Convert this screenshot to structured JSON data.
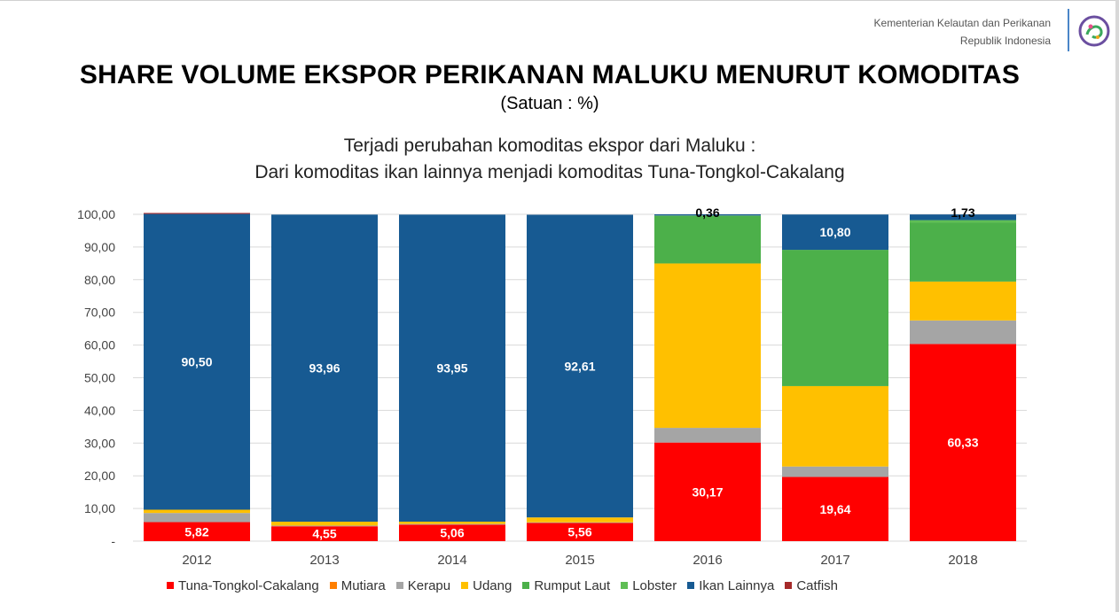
{
  "header": {
    "ministry_line1": "Kementerian Kelautan dan Perikanan",
    "ministry_line2": "Republik Indonesia"
  },
  "title": "SHARE VOLUME EKSPOR PERIKANAN MALUKU MENURUT KOMODITAS",
  "unit": "(Satuan : %)",
  "subtitle_line1": "Terjadi perubahan komoditas ekspor dari Maluku :",
  "subtitle_line2": "Dari komoditas ikan lainnya menjadi komoditas Tuna-Tongkol-Cakalang",
  "chart_data": {
    "type": "bar",
    "stacked": true,
    "categories": [
      "2012",
      "2013",
      "2014",
      "2015",
      "2016",
      "2017",
      "2018"
    ],
    "ylim": [
      0,
      100
    ],
    "yticks": [
      "-",
      "10,00",
      "20,00",
      "30,00",
      "40,00",
      "50,00",
      "60,00",
      "70,00",
      "80,00",
      "90,00",
      "100,00"
    ],
    "grid": true,
    "legend_position": "bottom",
    "series": [
      {
        "name": "Tuna-Tongkol-Cakalang",
        "color": "#ff0000",
        "values": [
          5.82,
          4.55,
          5.06,
          5.56,
          30.17,
          19.64,
          60.33
        ]
      },
      {
        "name": "Mutiara",
        "color": "#ff7f00",
        "values": [
          0,
          0,
          0,
          0,
          0,
          0,
          0
        ]
      },
      {
        "name": "Kerapu",
        "color": "#a5a5a5",
        "values": [
          2.8,
          0.2,
          0.2,
          0.2,
          4.5,
          3.2,
          7.2
        ]
      },
      {
        "name": "Udang",
        "color": "#ffc000",
        "values": [
          1.0,
          1.2,
          0.7,
          1.5,
          50.3,
          24.6,
          11.9
        ]
      },
      {
        "name": "Rumput Laut",
        "color": "#4cb04a",
        "values": [
          0,
          0,
          0,
          0,
          14.6,
          41.7,
          18.0
        ]
      },
      {
        "name": "Lobster",
        "color": "#5fbe55",
        "values": [
          0,
          0,
          0,
          0,
          0.07,
          0,
          0.8
        ]
      },
      {
        "name": "Ikan Lainnya",
        "color": "#175a92",
        "values": [
          90.5,
          93.96,
          93.95,
          92.61,
          0.36,
          10.8,
          1.73
        ]
      },
      {
        "name": "Catfish",
        "color": "#a52a2a",
        "values": [
          0.3,
          0,
          0,
          0,
          0,
          0,
          0
        ]
      }
    ],
    "data_labels": [
      {
        "category": "2012",
        "series": "Tuna-Tongkol-Cakalang",
        "text": "5,82"
      },
      {
        "category": "2013",
        "series": "Tuna-Tongkol-Cakalang",
        "text": "4,55"
      },
      {
        "category": "2014",
        "series": "Tuna-Tongkol-Cakalang",
        "text": "5,06"
      },
      {
        "category": "2015",
        "series": "Tuna-Tongkol-Cakalang",
        "text": "5,56"
      },
      {
        "category": "2016",
        "series": "Tuna-Tongkol-Cakalang",
        "text": "30,17"
      },
      {
        "category": "2017",
        "series": "Tuna-Tongkol-Cakalang",
        "text": "19,64"
      },
      {
        "category": "2018",
        "series": "Tuna-Tongkol-Cakalang",
        "text": "60,33"
      },
      {
        "category": "2012",
        "series": "Ikan Lainnya",
        "text": "90,50"
      },
      {
        "category": "2013",
        "series": "Ikan Lainnya",
        "text": "93,96"
      },
      {
        "category": "2014",
        "series": "Ikan Lainnya",
        "text": "93,95"
      },
      {
        "category": "2015",
        "series": "Ikan Lainnya",
        "text": "92,61"
      },
      {
        "category": "2016",
        "series": "Ikan Lainnya",
        "text": "0,36"
      },
      {
        "category": "2017",
        "series": "Ikan Lainnya",
        "text": "10,80"
      },
      {
        "category": "2018",
        "series": "Ikan Lainnya",
        "text": "1,73"
      }
    ]
  }
}
